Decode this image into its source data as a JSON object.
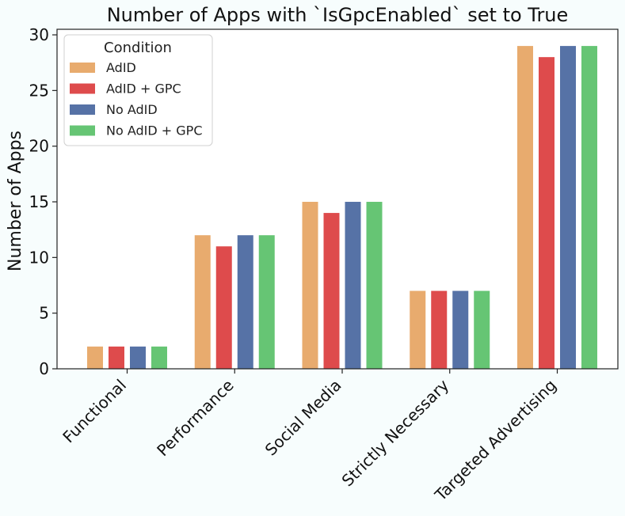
{
  "chart_data": {
    "type": "bar",
    "title": "Number of Apps with `IsGpcEnabled` set to True",
    "xlabel": "",
    "ylabel": "Number of Apps",
    "ylim": [
      0,
      30.5
    ],
    "yticks": [
      0,
      5,
      10,
      15,
      20,
      25,
      30
    ],
    "categories": [
      "Functional",
      "Performance",
      "Social Media",
      "Strictly Necessary",
      "Targeted Advertising"
    ],
    "series": [
      {
        "name": "AdID",
        "color": "#e8ab6e",
        "values": [
          2,
          12,
          15,
          7,
          29
        ]
      },
      {
        "name": "AdID + GPC",
        "color": "#de4b4c",
        "values": [
          2,
          11,
          14,
          7,
          28
        ]
      },
      {
        "name": "No AdID",
        "color": "#5672a6",
        "values": [
          2,
          12,
          15,
          7,
          29
        ]
      },
      {
        "name": "No AdID + GPC",
        "color": "#66c574",
        "values": [
          2,
          12,
          15,
          7,
          29
        ]
      }
    ],
    "legend": {
      "title": "Condition",
      "position": "top-left"
    },
    "grid": false
  }
}
